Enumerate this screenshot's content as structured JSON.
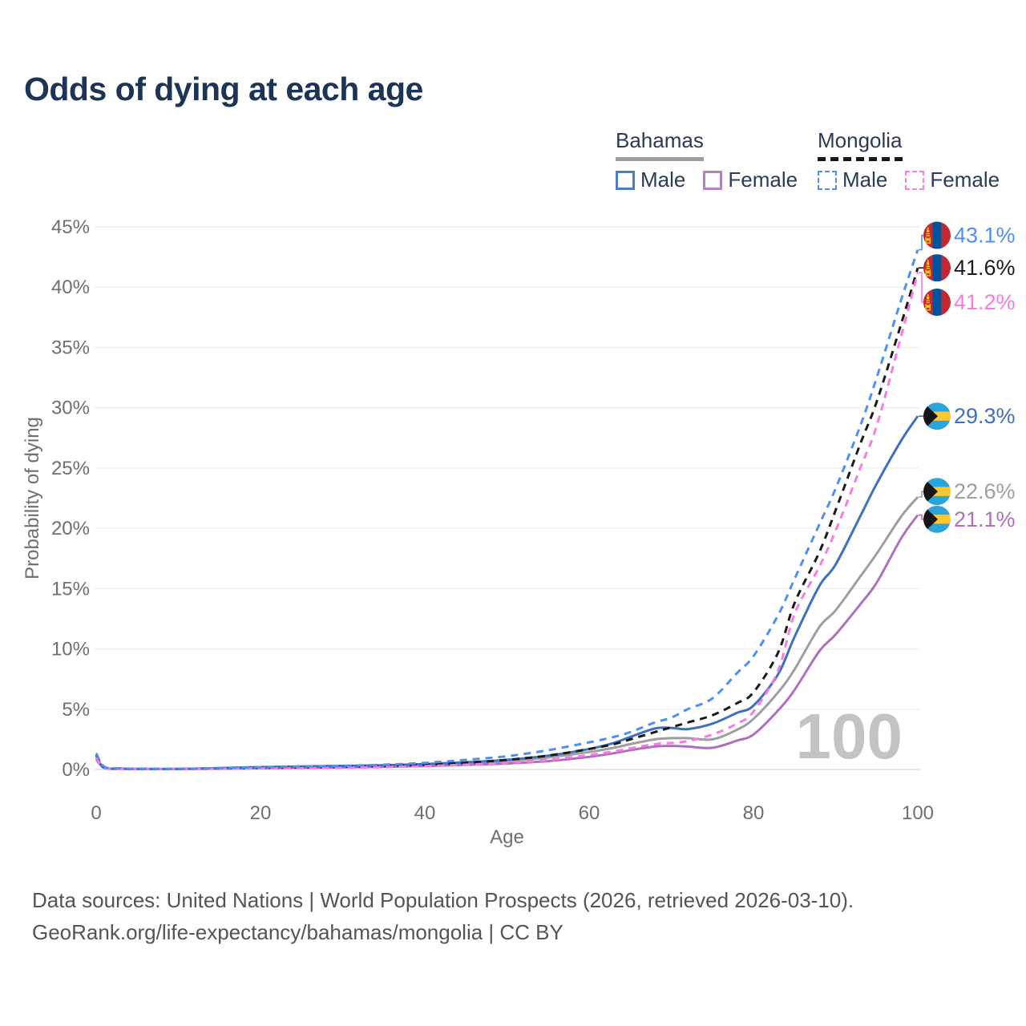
{
  "title": "Odds of dying at each age",
  "legend": {
    "groups": [
      {
        "label": "Bahamas",
        "style": "solid",
        "underline_color": "#9e9e9e",
        "items": [
          {
            "label": "Male",
            "color": "#3f6fbd",
            "dashed": false
          },
          {
            "label": "Female",
            "color": "#af6fc0",
            "dashed": false
          }
        ]
      },
      {
        "label": "Mongolia",
        "style": "dashed",
        "underline_color": "#161616",
        "items": [
          {
            "label": "Male",
            "color": "#4d8ff2",
            "dashed": true
          },
          {
            "label": "Female",
            "color": "#f87ae3",
            "dashed": true
          }
        ]
      }
    ]
  },
  "chart_data": {
    "type": "line",
    "title": "Odds of dying at each age",
    "xlabel": "Age",
    "ylabel": "Probability of dying",
    "xlim": [
      0,
      100
    ],
    "ylim": [
      0,
      45
    ],
    "xticks": [
      0,
      20,
      40,
      60,
      80,
      100
    ],
    "yticks": [
      0,
      5,
      10,
      15,
      20,
      25,
      30,
      35,
      40,
      45
    ],
    "ytick_suffix": "%",
    "grid": "horizontal",
    "legend_position": "top-right",
    "hover_age": "100",
    "ages": [
      0,
      1,
      3,
      5,
      10,
      15,
      20,
      25,
      30,
      35,
      40,
      45,
      50,
      55,
      60,
      63,
      65,
      68,
      70,
      72,
      75,
      78,
      80,
      83,
      85,
      88,
      90,
      93,
      95,
      98,
      100
    ],
    "series": [
      {
        "id": "bahamas-both",
        "country": "Bahamas",
        "sex": "Both",
        "color": "#9e9e9e",
        "dash": false,
        "flag": "bs",
        "end_label": "22.6%",
        "end_value": 22.6,
        "label_at": 23.05,
        "values": [
          0.95,
          0.13,
          0.07,
          0.05,
          0.045,
          0.1,
          0.16,
          0.2,
          0.25,
          0.3,
          0.38,
          0.5,
          0.7,
          1.0,
          1.45,
          1.8,
          2.1,
          2.5,
          2.6,
          2.6,
          2.5,
          3.3,
          4.2,
          6.4,
          8.3,
          11.8,
          13.2,
          16.0,
          17.9,
          21.0,
          22.6
        ]
      },
      {
        "id": "bahamas-female",
        "country": "Bahamas",
        "sex": "Female",
        "color": "#af6fc0",
        "dash": false,
        "flag": "bs",
        "end_label": "21.1%",
        "end_value": 21.1,
        "label_at": 20.75,
        "values": [
          0.85,
          0.12,
          0.06,
          0.04,
          0.04,
          0.07,
          0.1,
          0.14,
          0.18,
          0.22,
          0.28,
          0.38,
          0.5,
          0.7,
          1.05,
          1.35,
          1.6,
          1.9,
          1.95,
          1.9,
          1.8,
          2.4,
          2.9,
          4.9,
          6.6,
          9.8,
          11.2,
          13.7,
          15.5,
          19.2,
          21.1
        ]
      },
      {
        "id": "bahamas-male",
        "country": "Bahamas",
        "sex": "Male",
        "color": "#3f6fbd",
        "dash": false,
        "flag": "bs",
        "end_label": "29.3%",
        "end_value": 29.3,
        "label_at": 29.3,
        "values": [
          1.05,
          0.15,
          0.08,
          0.05,
          0.05,
          0.12,
          0.2,
          0.25,
          0.3,
          0.35,
          0.45,
          0.6,
          0.8,
          1.15,
          1.7,
          2.2,
          2.7,
          3.4,
          3.45,
          3.35,
          3.8,
          4.7,
          5.3,
          7.9,
          11.0,
          15.2,
          17.0,
          21.0,
          23.7,
          27.3,
          29.3
        ]
      },
      {
        "id": "mongolia-both",
        "country": "Mongolia",
        "sex": "Both",
        "color": "#1a1a1a",
        "dash": true,
        "flag": "mn",
        "end_label": "41.6%",
        "end_value": 41.6,
        "label_at": 41.6,
        "values": [
          1.2,
          0.18,
          0.08,
          0.05,
          0.045,
          0.09,
          0.15,
          0.18,
          0.22,
          0.3,
          0.4,
          0.55,
          0.8,
          1.15,
          1.7,
          2.1,
          2.5,
          3.1,
          3.5,
          3.9,
          4.5,
          5.5,
          6.4,
          9.7,
          13.8,
          18.0,
          21.5,
          27.0,
          30.5,
          37.0,
          41.6
        ]
      },
      {
        "id": "mongolia-female",
        "country": "Mongolia",
        "sex": "Female",
        "color": "#f87ae3",
        "dash": true,
        "flag": "mn",
        "end_label": "41.2%",
        "end_value": 41.2,
        "label_at": 38.75,
        "values": [
          1.0,
          0.14,
          0.07,
          0.045,
          0.04,
          0.07,
          0.1,
          0.12,
          0.15,
          0.2,
          0.28,
          0.4,
          0.55,
          0.8,
          1.2,
          1.5,
          1.75,
          2.1,
          2.2,
          2.35,
          2.9,
          3.8,
          4.8,
          8.2,
          12.9,
          16.8,
          19.8,
          25.0,
          28.5,
          36.0,
          41.2
        ]
      },
      {
        "id": "mongolia-male",
        "country": "Mongolia",
        "sex": "Male",
        "color": "#4d8ff2",
        "dash": true,
        "flag": "mn",
        "end_label": "43.1%",
        "end_value": 43.1,
        "label_at": 44.3,
        "values": [
          1.35,
          0.22,
          0.1,
          0.06,
          0.05,
          0.12,
          0.2,
          0.25,
          0.3,
          0.4,
          0.55,
          0.8,
          1.1,
          1.6,
          2.25,
          2.7,
          3.1,
          3.9,
          4.3,
          5.0,
          5.9,
          8.0,
          9.4,
          12.8,
          15.8,
          20.3,
          23.3,
          28.5,
          32.5,
          39.0,
          43.1
        ]
      }
    ],
    "flag_colors": {
      "mongolia_red": "#c4272f",
      "mongolia_blue": "#01529c",
      "mongolia_yellow": "#ffd900",
      "bahamas_aqua": "#2aa4dc",
      "bahamas_gold": "#ffc72e",
      "bahamas_black": "#161616"
    }
  },
  "source": {
    "line1": "Data sources: United Nations | World Population Prospects (2026, retrieved 2026-03-10).",
    "line2": "GeoRank.org/life-expectancy/bahamas/mongolia | CC BY"
  }
}
